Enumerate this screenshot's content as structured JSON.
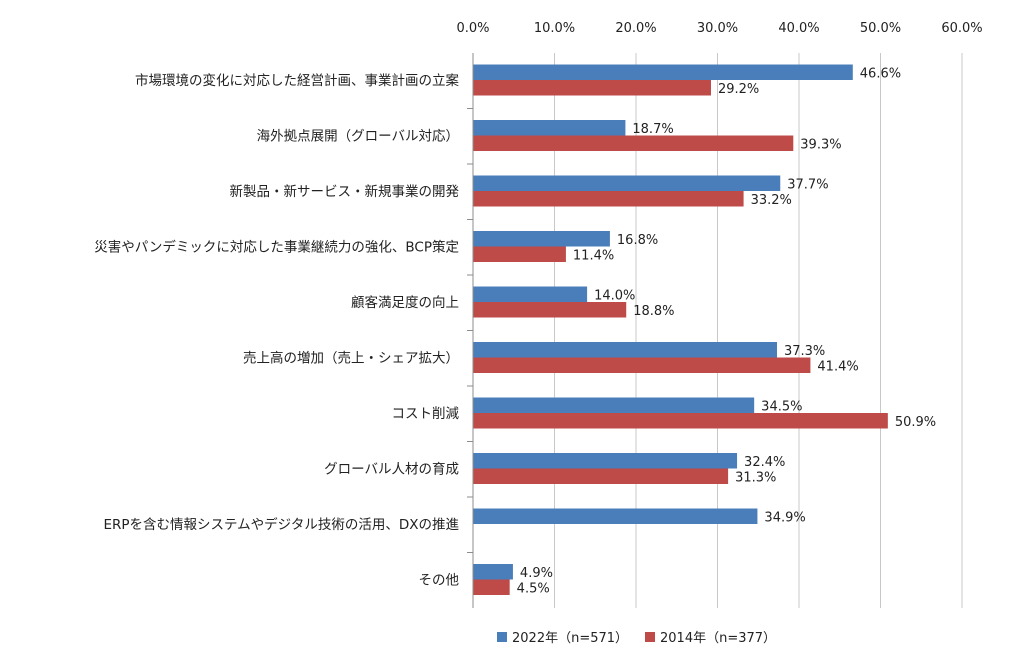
{
  "chart_data": {
    "type": "bar",
    "orientation": "horizontal",
    "xlim": [
      0,
      60
    ],
    "ticks": [
      0,
      10,
      20,
      30,
      40,
      50,
      60
    ],
    "tick_labels": [
      "0.0%",
      "10.0%",
      "20.0%",
      "30.0%",
      "40.0%",
      "50.0%",
      "60.0%"
    ],
    "grid": true,
    "legend_position": "bottom",
    "categories": [
      "市場環境の変化に対応した経営計画、事業計画の立案",
      "海外拠点展開（グローバル対応）",
      "新製品・新サービス・新規事業の開発",
      "災害やパンデミックに対応した事業継続力の強化、BCP策定",
      "顧客満足度の向上",
      "売上高の増加（売上・シェア拡大）",
      "コスト削減",
      "グローバル人材の育成",
      "ERPを含む情報システムやデジタル技術の活用、DXの推進",
      "その他"
    ],
    "series": [
      {
        "name": "2022年（n=571）",
        "color": "#4a7ebb",
        "values": [
          46.6,
          18.7,
          37.7,
          16.8,
          14.0,
          37.3,
          34.5,
          32.4,
          34.9,
          4.9
        ],
        "labels": [
          "46.6%",
          "18.7%",
          "37.7%",
          "16.8%",
          "14.0%",
          "37.3%",
          "34.5%",
          "32.4%",
          "34.9%",
          "4.9%"
        ]
      },
      {
        "name": "2014年（n=377）",
        "color": "#be4b48",
        "values": [
          29.2,
          39.3,
          33.2,
          11.4,
          18.8,
          41.4,
          50.9,
          31.3,
          null,
          4.5
        ],
        "labels": [
          "29.2%",
          "39.3%",
          "33.2%",
          "11.4%",
          "18.8%",
          "41.4%",
          "50.9%",
          "31.3%",
          "",
          "4.5%"
        ]
      }
    ]
  }
}
